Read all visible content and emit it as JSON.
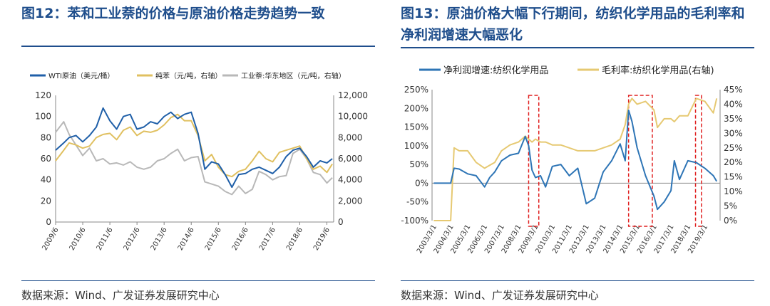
{
  "left": {
    "title": "图12：苯和工业萘的价格与原油价格走势趋势一致",
    "source": "数据来源：Wind、广发证券发展研究中心",
    "chart_data": {
      "type": "line",
      "legend": [
        "WTI原油（美元/桶）",
        "纯苯（元/吨，右轴）",
        "工业萘:华东地区（元/吨，右轴）"
      ],
      "x_ticks": [
        "2009/6",
        "2010/6",
        "2011/6",
        "2012/6",
        "2013/6",
        "2014/6",
        "2015/6",
        "2016/6",
        "2017/6",
        "2018/6",
        "2019/6"
      ],
      "y_left_ticks": [
        "0",
        "20",
        "40",
        "60",
        "80",
        "100",
        "120"
      ],
      "y_right_ticks": [
        "0",
        "2,000",
        "4,000",
        "6,000",
        "8,000",
        "10,000",
        "12,000"
      ],
      "ylim_left": [
        0,
        120
      ],
      "ylim_right": [
        0,
        12000
      ],
      "x": [
        2009.5,
        2009.8,
        2010.0,
        2010.25,
        2010.5,
        2010.75,
        2011.0,
        2011.25,
        2011.5,
        2011.75,
        2012.0,
        2012.25,
        2012.5,
        2012.75,
        2013.0,
        2013.25,
        2013.5,
        2013.75,
        2014.0,
        2014.25,
        2014.5,
        2014.75,
        2015.0,
        2015.25,
        2015.5,
        2015.75,
        2016.0,
        2016.25,
        2016.5,
        2016.75,
        2017.0,
        2017.25,
        2017.5,
        2017.75,
        2018.0,
        2018.25,
        2018.5,
        2018.75,
        2019.0,
        2019.25,
        2019.5,
        2019.7
      ],
      "series": [
        {
          "name": "WTI原油（美元/桶）",
          "axis": "left",
          "color": "#1f5fa8",
          "values": [
            68,
            75,
            80,
            82,
            76,
            82,
            90,
            108,
            96,
            88,
            100,
            102,
            88,
            90,
            95,
            93,
            100,
            104,
            98,
            102,
            104,
            84,
            50,
            57,
            55,
            45,
            33,
            45,
            46,
            50,
            52,
            49,
            46,
            52,
            62,
            68,
            70,
            62,
            52,
            58,
            56,
            60
          ]
        },
        {
          "name": "纯苯（元/吨，右轴）",
          "axis": "right",
          "color": "#e0c060",
          "values": [
            5800,
            6800,
            7500,
            7300,
            7000,
            7200,
            8000,
            8300,
            8400,
            7800,
            8700,
            9000,
            8200,
            8600,
            8500,
            8700,
            9200,
            9900,
            10200,
            9600,
            9600,
            8200,
            5800,
            6400,
            5200,
            4500,
            4300,
            4800,
            5000,
            5800,
            6700,
            6000,
            5700,
            6600,
            6800,
            7000,
            7200,
            6000,
            5000,
            5300,
            4700,
            5500
          ]
        },
        {
          "name": "工业萘:华东地区（元/吨，右轴）",
          "axis": "right",
          "color": "#b8b8b8",
          "values": [
            8500,
            9500,
            8300,
            7300,
            6300,
            7000,
            5800,
            6000,
            5500,
            5600,
            5400,
            5700,
            5200,
            5000,
            5200,
            5800,
            6000,
            6500,
            6900,
            5800,
            6100,
            6200,
            3800,
            3600,
            3400,
            2900,
            2600,
            3400,
            2700,
            3100,
            4800,
            4500,
            4000,
            4300,
            4400,
            6500,
            6900,
            6000,
            4700,
            4500,
            3700,
            4200
          ]
        }
      ]
    }
  },
  "right": {
    "title": "图13：原油价格大幅下行期间，纺织化学用品的毛利率和净利润增速大幅恶化",
    "source": "数据来源：Wind、广发证券发展研究中心",
    "chart_data": {
      "type": "line",
      "legend": [
        "净利润增速:纺织化学用品",
        "毛利率:纺织化学用品(右轴)"
      ],
      "x_ticks": [
        "2003/3/1",
        "2004/3/1",
        "2005/3/1",
        "2006/3/1",
        "2007/3/1",
        "2008/3/1",
        "2009/3/1",
        "2010/3/1",
        "2011/3/1",
        "2012/3/1",
        "2013/3/1",
        "2014/3/1",
        "2015/3/1",
        "2016/3/1",
        "2017/3/1",
        "2018/3/1",
        "2019/3/1"
      ],
      "y_left_ticks": [
        "-100%",
        "-50%",
        "0%",
        "50%",
        "100%",
        "150%",
        "200%",
        "250%"
      ],
      "y_right_ticks": [
        "0%",
        "5%",
        "10%",
        "15%",
        "20%",
        "25%",
        "30%",
        "35%",
        "40%",
        "45%"
      ],
      "ylim_left": [
        -100,
        250
      ],
      "ylim_right": [
        0,
        45
      ],
      "highlight_periods": [
        [
          2008.6,
          2009.2
        ],
        [
          2014.5,
          2015.9
        ],
        [
          2018.45,
          2018.8
        ]
      ],
      "x": [
        2003.0,
        2003.5,
        2004.0,
        2004.2,
        2004.5,
        2005.0,
        2005.5,
        2006.0,
        2006.3,
        2006.6,
        2007.0,
        2007.5,
        2008.0,
        2008.4,
        2008.6,
        2008.8,
        2009.0,
        2009.3,
        2009.6,
        2010.0,
        2010.5,
        2011.0,
        2011.5,
        2012.0,
        2012.5,
        2013.0,
        2013.5,
        2014.0,
        2014.3,
        2014.5,
        2014.7,
        2015.0,
        2015.5,
        2016.0,
        2016.2,
        2016.6,
        2017.0,
        2017.2,
        2017.5,
        2018.0,
        2018.5,
        2019.0,
        2019.5,
        2019.7
      ],
      "series": [
        {
          "name": "净利润增速:纺织化学用品",
          "axis": "left",
          "color": "#2e75b6",
          "values": [
            0,
            0,
            0,
            40,
            38,
            25,
            20,
            -10,
            15,
            30,
            60,
            75,
            80,
            125,
            100,
            35,
            15,
            20,
            -10,
            45,
            50,
            20,
            40,
            -55,
            -40,
            30,
            60,
            105,
            60,
            195,
            165,
            95,
            20,
            -35,
            -70,
            -50,
            -20,
            60,
            10,
            60,
            55,
            40,
            20,
            5
          ]
        },
        {
          "name": "毛利率:纺织化学用品(右轴)",
          "axis": "right",
          "color": "#e6c972",
          "values": [
            0,
            0,
            0,
            25,
            24,
            24,
            20,
            18,
            19,
            20,
            24,
            26,
            27,
            29,
            28,
            27,
            28,
            27,
            27,
            26,
            26,
            25,
            24,
            24,
            24,
            25,
            26,
            28,
            33,
            40,
            42,
            40,
            41,
            38,
            32,
            35,
            35,
            34,
            36,
            36,
            42,
            41,
            37,
            42
          ]
        }
      ]
    }
  }
}
